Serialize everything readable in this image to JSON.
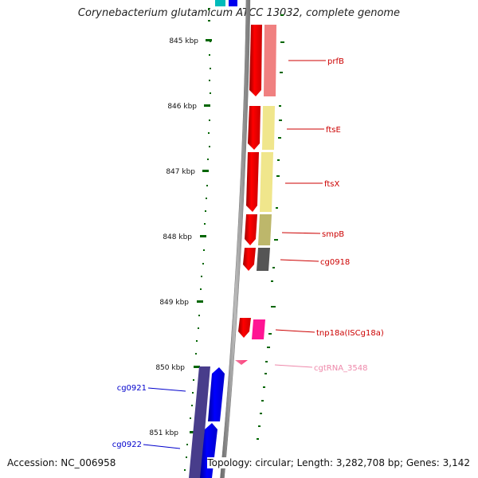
{
  "header": {
    "title": "Corynebacterium glutamicum ATCC 13032, complete genome"
  },
  "footer": {
    "accession": "Accession: NC_006958",
    "summary": "Topology: circular; Length: 3,282,708 bp; Genes: 3,142"
  },
  "ruler": {
    "ticks": [
      "845 kbp",
      "846 kbp",
      "847 kbp",
      "848 kbp",
      "849 kbp",
      "850 kbp",
      "851 kbp"
    ]
  },
  "features": [
    {
      "name": "prfB",
      "strand": "forward",
      "color": "#cc0000"
    },
    {
      "name": "ftsE",
      "strand": "forward",
      "color": "#cc0000"
    },
    {
      "name": "ftsX",
      "strand": "forward",
      "color": "#cc0000"
    },
    {
      "name": "smpB",
      "strand": "forward",
      "color": "#cc0000"
    },
    {
      "name": "cg0918",
      "strand": "forward",
      "color": "#cc0000"
    },
    {
      "name": "tnp18a(ISCg18a)",
      "strand": "forward",
      "color": "#cc0000"
    },
    {
      "name": "cgtRNA_3548",
      "strand": "forward",
      "color": "#ee88aa"
    },
    {
      "name": "cg0921",
      "strand": "reverse",
      "color": "#0000cc"
    },
    {
      "name": "cg0922",
      "strand": "reverse",
      "color": "#0000cc"
    }
  ],
  "colors": {
    "forward_cds": "#ee0000",
    "reverse_cds": "#0000ee",
    "backbone": "#888888",
    "gc_ticks": "#006600",
    "cog_prfB": "#f08080",
    "cog_ftsE": "#f0e68c",
    "cog_smpB": "#bdb76b",
    "cog_cg0918": "#555555",
    "cog_tnp": "#ff1493",
    "cog_cg0921": "#483d8b"
  }
}
